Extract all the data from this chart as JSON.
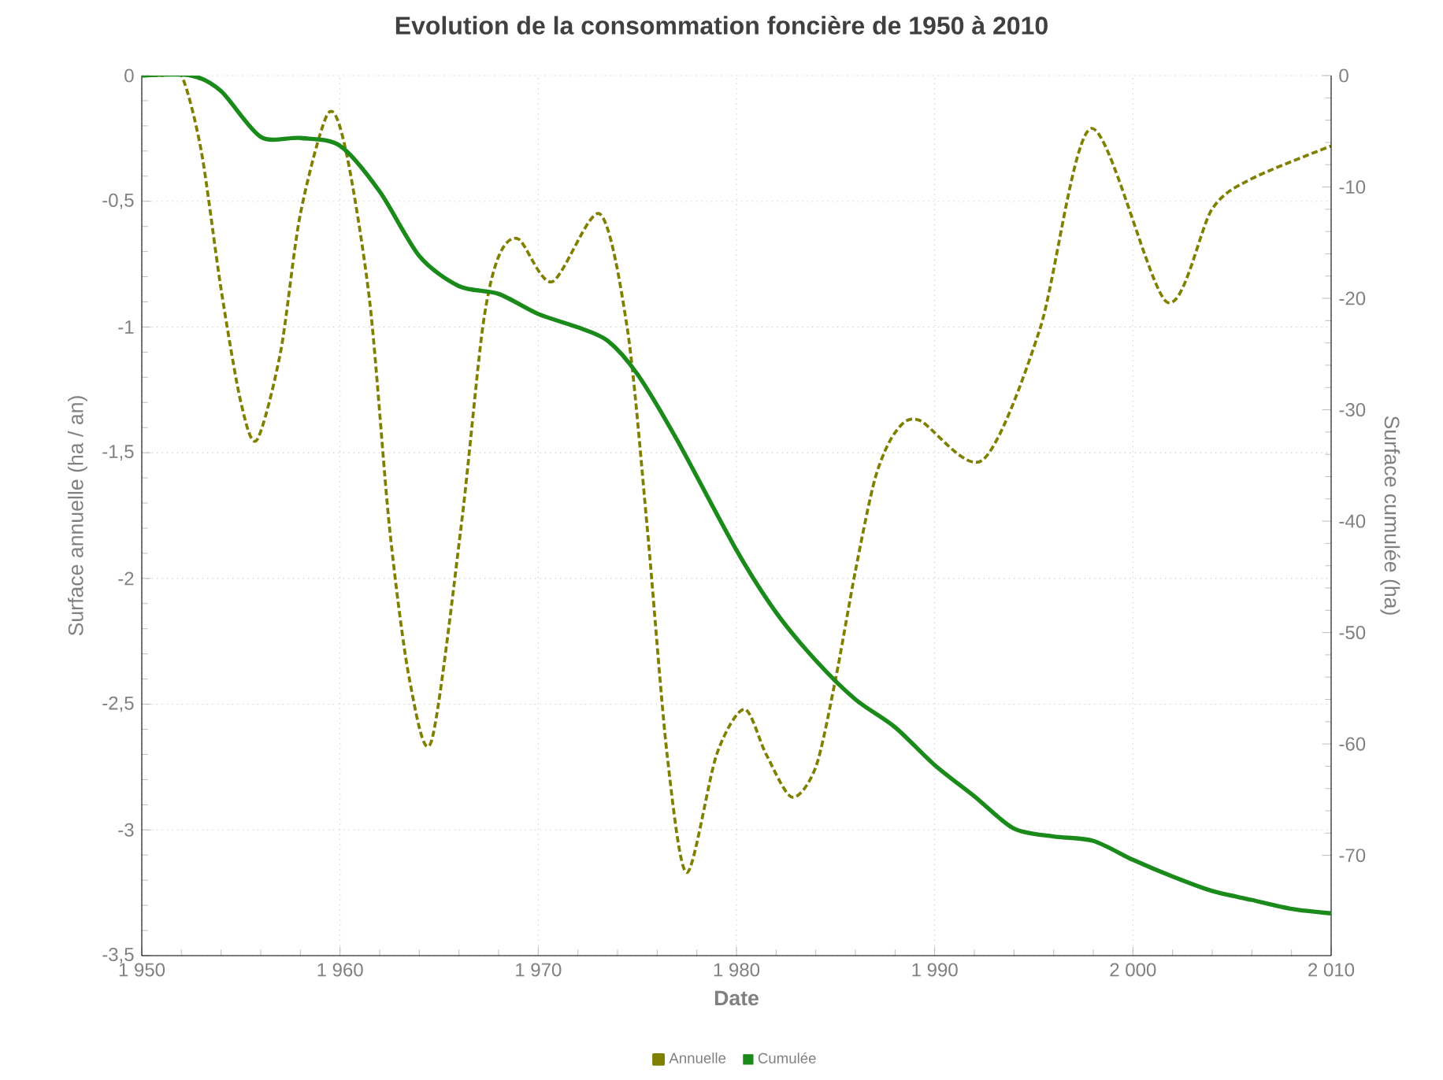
{
  "chart_data": {
    "type": "line",
    "title": "Evolution de la consommation foncière de 1950 à 2010",
    "xlabel": "Date",
    "ylabel": "Surface annuelle (ha / an)",
    "y2label": "Surface cumulée (ha)",
    "xlim": [
      1950,
      2010
    ],
    "xticks": [
      {
        "value": 1950,
        "label": "1 950"
      },
      {
        "value": 1960,
        "label": "1 960"
      },
      {
        "value": 1970,
        "label": "1 970"
      },
      {
        "value": 1980,
        "label": "1 980"
      },
      {
        "value": 1990,
        "label": "1 990"
      },
      {
        "value": 2000,
        "label": "2 000"
      },
      {
        "value": 2010,
        "label": "2 010"
      }
    ],
    "ylim": [
      -3.5,
      0
    ],
    "yticks": [
      {
        "value": -3.5,
        "label": "-3,5"
      },
      {
        "value": -3,
        "label": "-3"
      },
      {
        "value": -2.5,
        "label": "-2,5"
      },
      {
        "value": -2,
        "label": "-2"
      },
      {
        "value": -1.5,
        "label": "-1,5"
      },
      {
        "value": -1,
        "label": "-1"
      },
      {
        "value": -0.5,
        "label": "-0,5"
      },
      {
        "value": 0,
        "label": "0"
      }
    ],
    "y2lim": [
      -79,
      0
    ],
    "y2ticks": [
      -70,
      -60,
      -50,
      -40,
      -30,
      -20,
      -10,
      0
    ],
    "grid": true,
    "legend": "bottom",
    "series": [
      {
        "name": "Annuelle",
        "color": "#808000",
        "line_style": "dashed",
        "axis": "y",
        "x": [
          1950,
          1951,
          1952,
          1953,
          1954,
          1955,
          1955.8,
          1957,
          1958,
          1959.4,
          1960.3,
          1961.5,
          1962.5,
          1963.5,
          1964.6,
          1966.1,
          1967.2,
          1968,
          1969,
          1970.7,
          1973.1,
          1974.5,
          1975.5,
          1976.5,
          1977.5,
          1979,
          1980.4,
          1981.5,
          1982.8,
          1984,
          1985,
          1986,
          1987,
          1988,
          1989.2,
          1992.4,
          1995.3,
          1997.9,
          2001.7,
          2004,
          2006,
          2010
        ],
        "values": [
          0,
          0,
          0,
          -0.3,
          -0.85,
          -1.3,
          -1.45,
          -1.1,
          -0.55,
          -0.15,
          -0.3,
          -0.9,
          -1.8,
          -2.4,
          -2.65,
          -1.8,
          -1.0,
          -0.72,
          -0.65,
          -0.82,
          -0.55,
          -1.01,
          -1.8,
          -2.7,
          -3.17,
          -2.7,
          -2.52,
          -2.7,
          -2.87,
          -2.75,
          -2.4,
          -1.97,
          -1.6,
          -1.42,
          -1.37,
          -1.53,
          -1.01,
          -0.21,
          -0.9,
          -0.53,
          -0.41,
          -0.28
        ]
      },
      {
        "name": "Cumulée",
        "color": "#1a8a1a",
        "line_style": "solid",
        "axis": "y2",
        "x": [
          1950,
          1952.5,
          1954,
          1956,
          1958,
          1960,
          1962,
          1964,
          1966,
          1968,
          1970,
          1972,
          1973.5,
          1975,
          1977,
          1980,
          1982,
          1984,
          1986,
          1988,
          1990,
          1992,
          1994,
          1996,
          1998,
          2000,
          2002,
          2004,
          2006,
          2008,
          2010
        ],
        "values": [
          0,
          0,
          -1.4,
          -5.5,
          -5.6,
          -6.3,
          -10.4,
          -16.2,
          -18.9,
          -19.6,
          -21.4,
          -22.6,
          -23.8,
          -26.8,
          -32.7,
          -42.6,
          -48.2,
          -52.5,
          -56,
          -58.5,
          -61.9,
          -64.7,
          -67.6,
          -68.3,
          -68.7,
          -70.4,
          -71.9,
          -73.2,
          -74,
          -74.8,
          -75.2
        ]
      }
    ]
  }
}
